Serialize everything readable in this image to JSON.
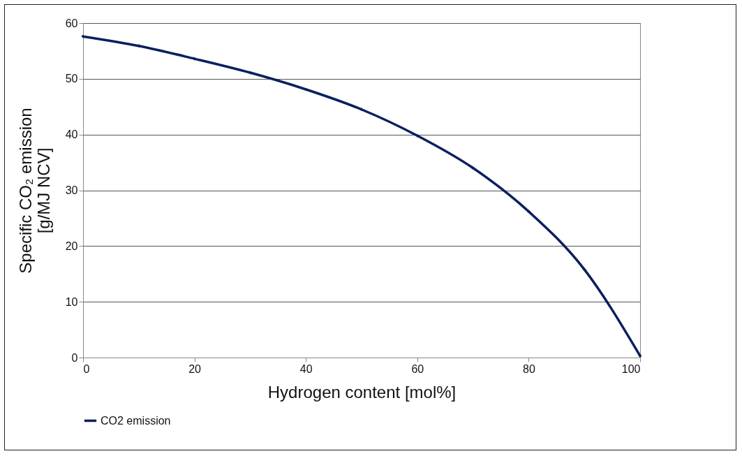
{
  "chart_data": {
    "type": "line",
    "xlabel": "Hydrogen content [mol%]",
    "ylabel": "Specific CO₂ emission\n[g/MJ NCV]",
    "x": [
      0,
      10,
      20,
      30,
      40,
      50,
      60,
      70,
      80,
      90,
      100
    ],
    "series": [
      {
        "name": "CO2 emission",
        "color": "#0b1f5e",
        "values": [
          57.6,
          55.9,
          53.6,
          51.1,
          48.1,
          44.5,
          39.8,
          34.0,
          26.2,
          15.8,
          0.3
        ]
      }
    ],
    "xlim": [
      0,
      100
    ],
    "xticks": [
      0,
      20,
      40,
      60,
      80,
      100
    ],
    "ylim": [
      0,
      60
    ],
    "yticks": [
      0,
      10,
      20,
      30,
      40,
      50,
      60
    ],
    "grid": "y",
    "legend": "bottom",
    "marker": "cross",
    "line_style": "solid"
  }
}
